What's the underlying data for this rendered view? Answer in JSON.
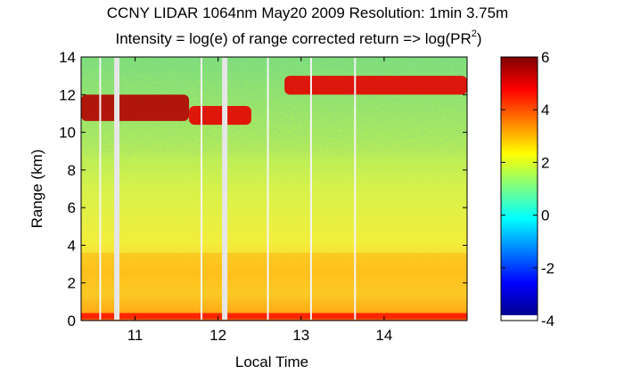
{
  "chart_data": {
    "type": "heatmap",
    "title": "CCNY LIDAR 1064nm May20 2009 Resolution: 1min 3.75m",
    "subtitle": "Intensity = log(e) of range corrected return => log(PR",
    "subtitle_sup": "2",
    "subtitle_end": ")",
    "xlabel": "Local Time",
    "ylabel": "Range (km)",
    "xlim": [
      10.35,
      15.0
    ],
    "ylim": [
      0,
      14
    ],
    "x_ticks": [
      11,
      12,
      13,
      14
    ],
    "x_tick_labels": [
      "11",
      "12",
      "13",
      "14"
    ],
    "y_ticks": [
      0,
      2,
      4,
      6,
      8,
      10,
      12,
      14
    ],
    "y_tick_labels": [
      "0",
      "2",
      "4",
      "6",
      "8",
      "10",
      "12",
      "14"
    ],
    "colorbar": {
      "clim": [
        -4,
        6
      ],
      "ticks": [
        -4,
        -2,
        0,
        2,
        4,
        6
      ],
      "tick_labels": [
        "-4",
        "-2",
        "0",
        "2",
        "4",
        "6"
      ],
      "colormap": "jet"
    },
    "grid": false,
    "data_gaps_local_time": [
      10.58,
      10.78,
      11.8,
      12.08,
      12.6,
      13.12,
      13.65
    ],
    "layers": [
      {
        "feature": "surface layer",
        "x_range": [
          10.35,
          15.0
        ],
        "range_km": [
          0.1,
          0.4
        ],
        "intensity": 4.5
      },
      {
        "feature": "boundary layer aerosol",
        "x_range": [
          10.35,
          15.0
        ],
        "range_km": [
          0.4,
          3.6
        ],
        "intensity": 3.2
      },
      {
        "feature": "cirrus cloud layer",
        "x_range": [
          10.35,
          11.65
        ],
        "range_km": [
          10.6,
          12.0
        ],
        "intensity": 5.5
      },
      {
        "feature": "cirrus cloud layer",
        "x_range": [
          11.65,
          12.4
        ],
        "range_km": [
          10.4,
          11.4
        ],
        "intensity": 5.0
      },
      {
        "feature": "cirrus cloud layer",
        "x_range": [
          12.8,
          15.0
        ],
        "range_km": [
          12.0,
          13.0
        ],
        "intensity": 5.0
      }
    ]
  }
}
